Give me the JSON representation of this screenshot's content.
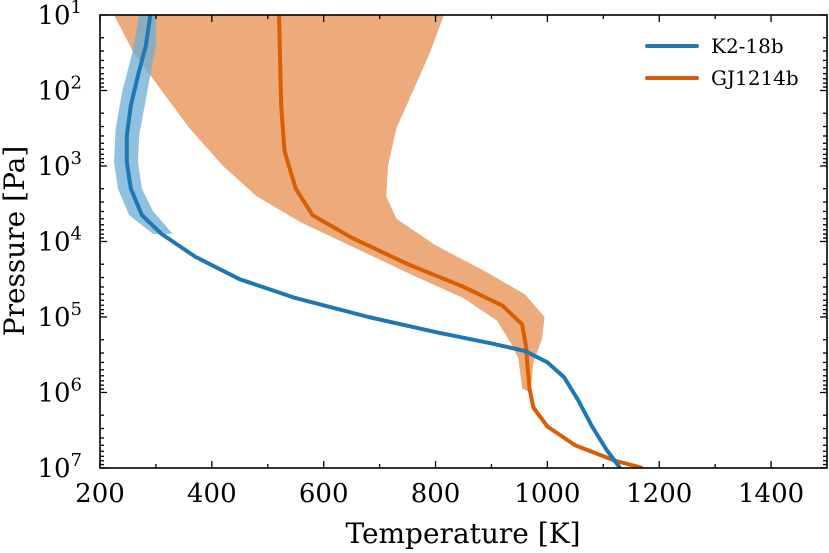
{
  "chart_data": {
    "type": "line",
    "title": "",
    "xlabel": "Temperature [K]",
    "ylabel": "Pressure [Pa]",
    "xlim": [
      200,
      1500
    ],
    "ylim_log10": [
      1,
      7
    ],
    "y_inverted": true,
    "y_scale": "log",
    "x_ticks": [
      200,
      400,
      600,
      800,
      1000,
      1200,
      1400
    ],
    "y_ticks": [
      {
        "base": "10",
        "exp": "1",
        "log10": 1
      },
      {
        "base": "10",
        "exp": "2",
        "log10": 2
      },
      {
        "base": "10",
        "exp": "3",
        "log10": 3
      },
      {
        "base": "10",
        "exp": "4",
        "log10": 4
      },
      {
        "base": "10",
        "exp": "5",
        "log10": 5
      },
      {
        "base": "10",
        "exp": "6",
        "log10": 6
      },
      {
        "base": "10",
        "exp": "7",
        "log10": 7
      }
    ],
    "legend_position": "top-right",
    "series": [
      {
        "name": "K2-18b",
        "color": "#1f77b4",
        "band_color": "#6baed6",
        "line": [
          [
            290,
            1.0
          ],
          [
            282,
            1.4
          ],
          [
            268,
            1.8
          ],
          [
            255,
            2.2
          ],
          [
            248,
            2.6
          ],
          [
            248,
            2.95
          ],
          [
            255,
            3.3
          ],
          [
            275,
            3.65
          ],
          [
            310,
            3.9
          ],
          [
            370,
            4.2
          ],
          [
            450,
            4.5
          ],
          [
            550,
            4.75
          ],
          [
            680,
            5.0
          ],
          [
            800,
            5.2
          ],
          [
            900,
            5.35
          ],
          [
            960,
            5.45
          ],
          [
            1000,
            5.6
          ],
          [
            1030,
            5.8
          ],
          [
            1055,
            6.1
          ],
          [
            1080,
            6.45
          ],
          [
            1105,
            6.75
          ],
          [
            1130,
            7.0
          ]
        ],
        "band_upper": [
          [
            270,
            1.0
          ],
          [
            258,
            1.5
          ],
          [
            240,
            2.0
          ],
          [
            228,
            2.5
          ],
          [
            225,
            2.95
          ],
          [
            232,
            3.3
          ],
          [
            252,
            3.65
          ],
          [
            295,
            3.9
          ]
        ],
        "band_lower": [
          [
            300,
            1.0
          ],
          [
            300,
            1.4
          ],
          [
            290,
            1.8
          ],
          [
            280,
            2.2
          ],
          [
            270,
            2.6
          ],
          [
            268,
            2.95
          ],
          [
            275,
            3.3
          ],
          [
            295,
            3.6
          ],
          [
            330,
            3.9
          ]
        ]
      },
      {
        "name": "GJ1214b",
        "color": "#d95f02",
        "band_color": "#edaa7a",
        "line": [
          [
            520,
            1.0
          ],
          [
            522,
            1.6
          ],
          [
            524,
            2.2
          ],
          [
            530,
            2.8
          ],
          [
            550,
            3.3
          ],
          [
            580,
            3.65
          ],
          [
            650,
            3.95
          ],
          [
            750,
            4.3
          ],
          [
            850,
            4.6
          ],
          [
            920,
            4.85
          ],
          [
            955,
            5.1
          ],
          [
            962,
            5.4
          ],
          [
            965,
            5.7
          ],
          [
            968,
            5.95
          ],
          [
            975,
            6.2
          ],
          [
            1000,
            6.45
          ],
          [
            1050,
            6.7
          ],
          [
            1120,
            6.9
          ],
          [
            1170,
            7.0
          ]
        ],
        "band_left": [
          [
            225,
            1.0
          ],
          [
            260,
            1.5
          ],
          [
            310,
            2.0
          ],
          [
            360,
            2.5
          ],
          [
            420,
            3.0
          ],
          [
            480,
            3.4
          ],
          [
            560,
            3.75
          ],
          [
            660,
            4.1
          ],
          [
            760,
            4.45
          ],
          [
            850,
            4.75
          ],
          [
            910,
            5.05
          ],
          [
            935,
            5.35
          ],
          [
            948,
            5.55
          ],
          [
            955,
            5.95
          ],
          [
            970,
            6.0
          ]
        ],
        "band_right": [
          [
            815,
            1.0
          ],
          [
            790,
            1.5
          ],
          [
            760,
            2.0
          ],
          [
            730,
            2.5
          ],
          [
            715,
            3.0
          ],
          [
            712,
            3.4
          ],
          [
            730,
            3.7
          ],
          [
            800,
            4.05
          ],
          [
            890,
            4.4
          ],
          [
            960,
            4.7
          ],
          [
            995,
            5.0
          ],
          [
            990,
            5.3
          ],
          [
            975,
            5.6
          ],
          [
            970,
            6.0
          ]
        ]
      }
    ]
  }
}
